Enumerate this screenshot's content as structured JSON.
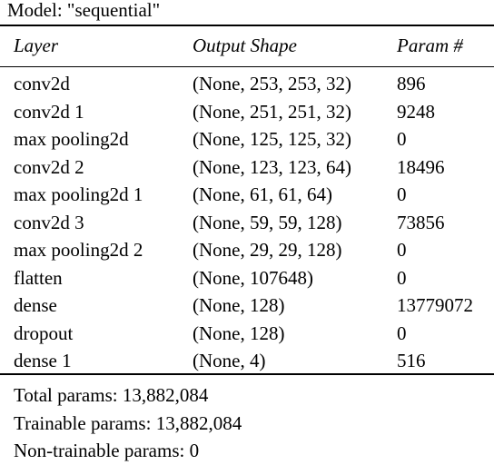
{
  "model_title": "Model: \"sequential\"",
  "table": {
    "headers": {
      "layer": "Layer",
      "output_shape": "Output Shape",
      "params": "Param #"
    },
    "rows": [
      {
        "layer": "conv2d",
        "output_shape": "(None, 253, 253, 32)",
        "params": "896"
      },
      {
        "layer": "conv2d 1",
        "output_shape": "(None, 251, 251, 32)",
        "params": "9248"
      },
      {
        "layer": "max pooling2d",
        "output_shape": "(None, 125, 125, 32)",
        "params": "0"
      },
      {
        "layer": "conv2d 2",
        "output_shape": "(None, 123, 123, 64)",
        "params": "18496"
      },
      {
        "layer": "max pooling2d 1",
        "output_shape": "(None, 61, 61, 64)",
        "params": "0"
      },
      {
        "layer": "conv2d 3",
        "output_shape": "(None, 59, 59, 128)",
        "params": "73856"
      },
      {
        "layer": "max pooling2d 2",
        "output_shape": "(None, 29, 29, 128)",
        "params": "0"
      },
      {
        "layer": "flatten",
        "output_shape": "(None, 107648)",
        "params": "0"
      },
      {
        "layer": "dense",
        "output_shape": "(None, 128)",
        "params": "13779072"
      },
      {
        "layer": "dropout",
        "output_shape": "(None, 128)",
        "params": "0"
      },
      {
        "layer": "dense 1",
        "output_shape": "(None, 4)",
        "params": "516"
      }
    ]
  },
  "summary": {
    "total": "Total params: 13,882,084",
    "trainable": "Trainable params: 13,882,084",
    "non_trainable": "Non-trainable params: 0"
  }
}
